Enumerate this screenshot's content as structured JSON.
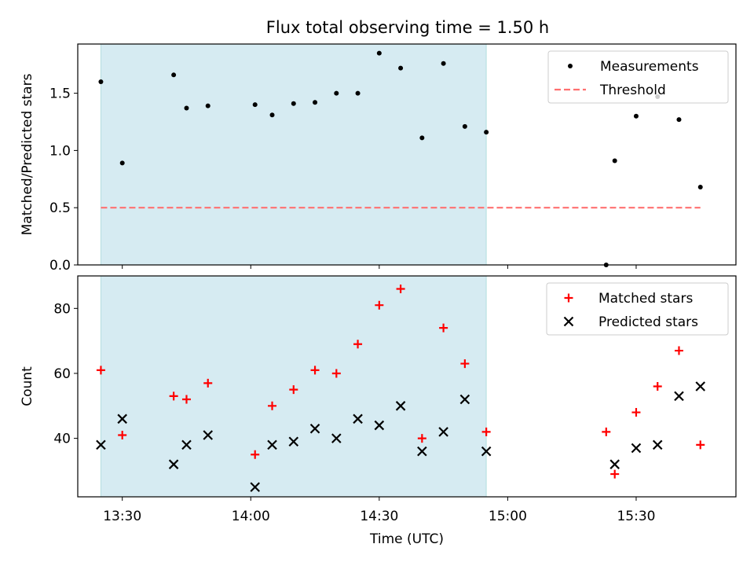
{
  "title": "Flux total observing time = 1.50 h",
  "chart_data": [
    {
      "type": "scatter",
      "ylabel": "Matched/Predicted stars",
      "ylim": [
        0,
        1.93
      ],
      "y_ticks": [
        0.0,
        0.5,
        1.0,
        1.5
      ],
      "y_tick_labels": [
        "0.0",
        "0.5",
        "1.0",
        "1.5"
      ],
      "legend_position": "top-right",
      "shaded_interval": [
        "13:25",
        "14:55"
      ],
      "series": [
        {
          "name": "Measurements",
          "marker": "dot",
          "color": "#000000",
          "x": [
            "13:25",
            "13:30",
            "13:42",
            "13:45",
            "13:50",
            "14:01",
            "14:05",
            "14:10",
            "14:15",
            "14:20",
            "14:25",
            "14:30",
            "14:35",
            "14:40",
            "14:45",
            "14:50",
            "14:55",
            "15:23",
            "15:25",
            "15:30",
            "15:35",
            "15:40",
            "15:45"
          ],
          "y": [
            1.6,
            0.89,
            1.66,
            1.37,
            1.39,
            1.4,
            1.31,
            1.41,
            1.42,
            1.5,
            1.5,
            1.85,
            1.72,
            1.11,
            1.76,
            1.21,
            1.16,
            0.0,
            0.91,
            1.3,
            1.47,
            1.27,
            0.68
          ]
        },
        {
          "name": "Threshold",
          "marker": "dashed-line",
          "color": "#ff7070",
          "x": [
            "13:25",
            "15:45"
          ],
          "y": [
            0.5,
            0.5
          ]
        }
      ]
    },
    {
      "type": "scatter",
      "xlabel": "Time (UTC)",
      "ylabel": "Count",
      "ylim": [
        22,
        90
      ],
      "y_ticks": [
        40,
        60,
        80
      ],
      "y_tick_labels": [
        "40",
        "60",
        "80"
      ],
      "x_ticks": [
        "13:30",
        "14:00",
        "14:30",
        "15:00",
        "15:30"
      ],
      "legend_position": "top-right",
      "shaded_interval": [
        "13:25",
        "14:55"
      ],
      "series": [
        {
          "name": "Matched stars",
          "marker": "plus",
          "color": "#ff0000",
          "x": [
            "13:25",
            "13:30",
            "13:42",
            "13:45",
            "13:50",
            "14:01",
            "14:05",
            "14:10",
            "14:15",
            "14:20",
            "14:25",
            "14:30",
            "14:35",
            "14:40",
            "14:45",
            "14:50",
            "14:55",
            "15:23",
            "15:25",
            "15:30",
            "15:35",
            "15:40",
            "15:45"
          ],
          "y": [
            61,
            41,
            53,
            52,
            57,
            35,
            50,
            55,
            61,
            60,
            69,
            81,
            86,
            40,
            74,
            63,
            42,
            42,
            29,
            48,
            56,
            67,
            38
          ]
        },
        {
          "name": "Predicted stars",
          "marker": "x",
          "color": "#000000",
          "x": [
            "13:25",
            "13:30",
            "13:42",
            "13:45",
            "13:50",
            "14:01",
            "14:05",
            "14:10",
            "14:15",
            "14:20",
            "14:25",
            "14:30",
            "14:35",
            "14:40",
            "14:45",
            "14:50",
            "14:55",
            "15:25",
            "15:30",
            "15:35",
            "15:40",
            "15:45"
          ],
          "y": [
            38,
            46,
            32,
            38,
            41,
            25,
            38,
            39,
            43,
            40,
            46,
            44,
            50,
            36,
            42,
            52,
            36,
            32,
            37,
            38,
            53,
            56
          ]
        }
      ]
    }
  ]
}
